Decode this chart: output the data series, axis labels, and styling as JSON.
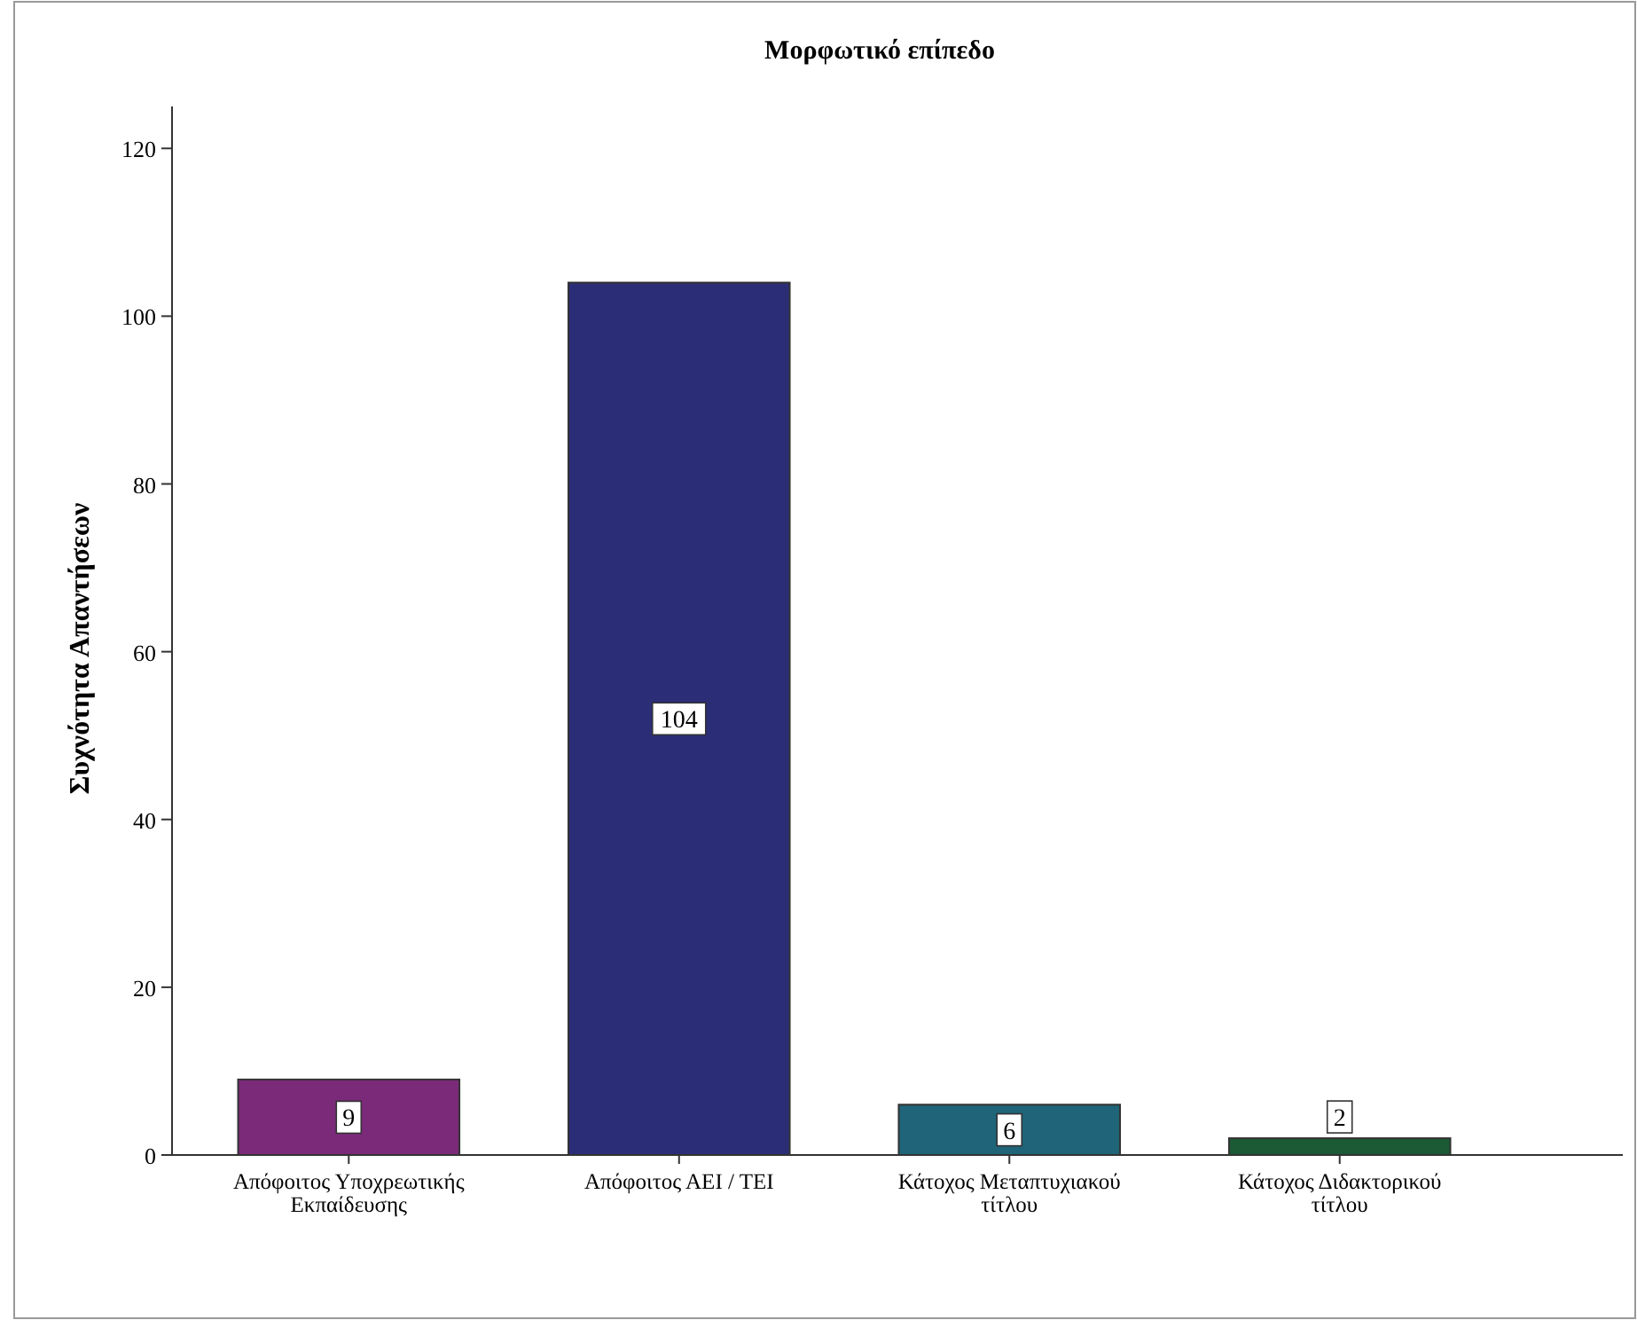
{
  "chart_data": {
    "type": "bar",
    "title": "Μορφωτικό επίπεδο",
    "ylabel": "Συχνότητα Απαντήσεων",
    "categories": [
      "Απόφοιτος Υποχρεωτικής Εκπαίδευσης",
      "Απόφοιτος ΑΕΙ / ΤΕΙ",
      "Κάτοχος Μεταπτυχιακού τίτλου",
      "Κάτοχος Διδακτορικού τίτλου"
    ],
    "values": [
      9,
      104,
      6,
      2
    ],
    "colors": [
      "#7b2a7a",
      "#2b2d77",
      "#1f6478",
      "#1b5a35"
    ],
    "ylim": [
      0,
      125
    ],
    "yticks": [
      0,
      20,
      40,
      60,
      80,
      100,
      120
    ],
    "grid": false,
    "data_labels": true
  }
}
